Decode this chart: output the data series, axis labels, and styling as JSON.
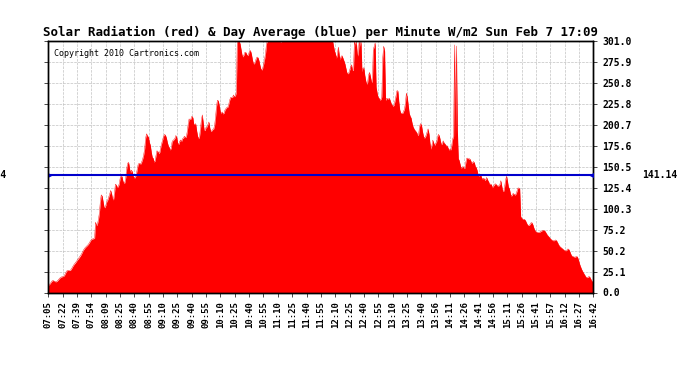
{
  "title": "Solar Radiation (red) & Day Average (blue) per Minute W/m2 Sun Feb 7 17:09",
  "copyright": "Copyright 2010 Cartronics.com",
  "avg_value": 141.14,
  "y_max": 301.0,
  "y_min": 0.0,
  "y_ticks": [
    0.0,
    25.1,
    50.2,
    75.2,
    100.3,
    125.4,
    150.5,
    175.6,
    200.7,
    225.8,
    250.8,
    275.9,
    301.0
  ],
  "fill_color": "#FF0000",
  "line_color": "#0000CC",
  "background_color": "#FFFFFF",
  "grid_color": "#BBBBBB",
  "x_labels": [
    "07:05",
    "07:22",
    "07:39",
    "07:54",
    "08:09",
    "08:25",
    "08:40",
    "08:55",
    "09:10",
    "09:25",
    "09:40",
    "09:55",
    "10:10",
    "10:25",
    "10:40",
    "10:55",
    "11:10",
    "11:25",
    "11:40",
    "11:55",
    "12:10",
    "12:25",
    "12:40",
    "12:55",
    "13:10",
    "13:25",
    "13:40",
    "13:56",
    "14:11",
    "14:26",
    "14:41",
    "14:56",
    "15:11",
    "15:26",
    "15:41",
    "15:57",
    "16:12",
    "16:27",
    "16:42"
  ],
  "figwidth": 6.9,
  "figheight": 3.75,
  "dpi": 100
}
